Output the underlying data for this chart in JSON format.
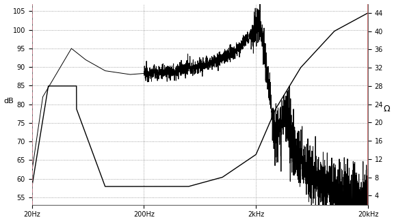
{
  "bg_color": "#ffffff",
  "plot_bg_color": "#ffffff",
  "left_border_color": "#d08090",
  "right_border_color": "#c05050",
  "spl_color": "#000000",
  "imp_color": "#000000",
  "xmin": 20,
  "xmax": 20000,
  "ymin_spl": 53,
  "ymax_spl": 107,
  "yticks_spl": [
    55,
    60,
    65,
    70,
    75,
    80,
    85,
    90,
    95,
    100,
    105
  ],
  "ymin_imp": 2,
  "ymax_imp": 46,
  "yticks_imp": [
    4,
    8,
    12,
    16,
    20,
    24,
    28,
    32,
    36,
    40,
    44
  ],
  "xtick_labels": [
    "20Hz",
    "200Hz",
    "2kHz",
    "20kHz"
  ],
  "xtick_positions": [
    20,
    200,
    2000,
    20000
  ],
  "ylabel_spl": "dB",
  "ylabel_imp": "Ω"
}
